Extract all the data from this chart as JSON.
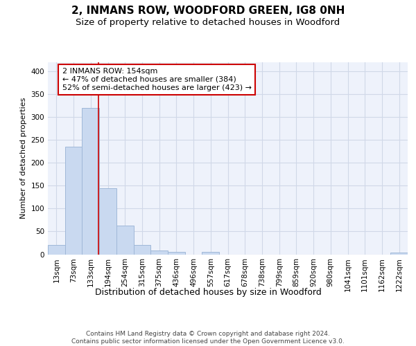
{
  "title": "2, INMANS ROW, WOODFORD GREEN, IG8 0NH",
  "subtitle": "Size of property relative to detached houses in Woodford",
  "xlabel": "Distribution of detached houses by size in Woodford",
  "ylabel": "Number of detached properties",
  "bar_values": [
    20,
    235,
    320,
    145,
    63,
    20,
    8,
    5,
    0,
    5,
    0,
    0,
    0,
    0,
    0,
    0,
    0,
    0,
    0,
    0,
    4
  ],
  "bin_labels": [
    "13sqm",
    "73sqm",
    "133sqm",
    "194sqm",
    "254sqm",
    "315sqm",
    "375sqm",
    "436sqm",
    "496sqm",
    "557sqm",
    "617sqm",
    "678sqm",
    "738sqm",
    "799sqm",
    "859sqm",
    "920sqm",
    "980sqm",
    "1041sqm",
    "1101sqm",
    "1162sqm",
    "1222sqm"
  ],
  "bar_color": "#c9d9f0",
  "bar_edge_color": "#a0b8d8",
  "grid_color": "#d0d8e8",
  "background_color": "#eef2fb",
  "vline_x": 2.47,
  "vline_color": "#cc0000",
  "annotation_text": "2 INMANS ROW: 154sqm\n← 47% of detached houses are smaller (384)\n52% of semi-detached houses are larger (423) →",
  "annotation_box_color": "white",
  "annotation_box_edge_color": "#cc0000",
  "ylim": [
    0,
    420
  ],
  "yticks": [
    0,
    50,
    100,
    150,
    200,
    250,
    300,
    350,
    400
  ],
  "footer_text": "Contains HM Land Registry data © Crown copyright and database right 2024.\nContains public sector information licensed under the Open Government Licence v3.0.",
  "title_fontsize": 11,
  "subtitle_fontsize": 9.5,
  "xlabel_fontsize": 9,
  "ylabel_fontsize": 8,
  "tick_fontsize": 7.5,
  "annotation_fontsize": 8,
  "footer_fontsize": 6.5
}
